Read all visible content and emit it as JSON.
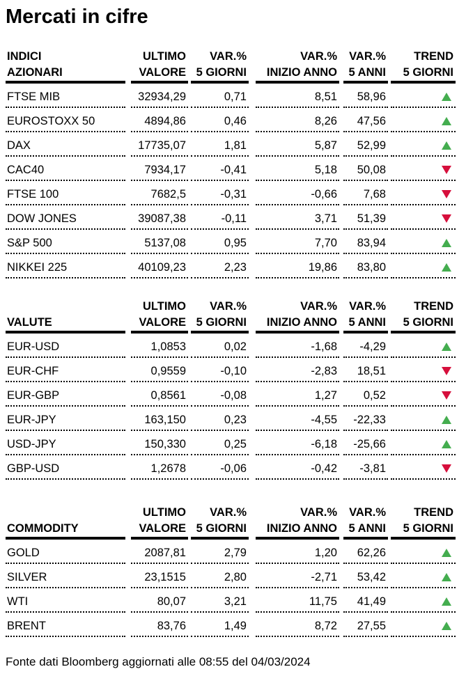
{
  "page_title": "Mercati in cifre",
  "colors": {
    "text": "#000000",
    "background": "#ffffff",
    "trend_up": "#44ad4f",
    "trend_down": "#d60f3c"
  },
  "footer": {
    "text": "Fonte dati Bloomberg aggiornati alle 08:55 del 04/03/2024"
  },
  "tables": [
    {
      "id": "indici-azionari",
      "header": {
        "col_label": [
          "INDICI",
          "AZIONARI"
        ],
        "columns": [
          [
            "ULTIMO",
            "VALORE"
          ],
          [
            "VAR.%",
            "5 GIORNI"
          ],
          [
            "VAR.%",
            "INIZIO ANNO"
          ],
          [
            "VAR.%",
            "5 ANNI"
          ],
          [
            "TREND",
            "5 GIORNI"
          ]
        ]
      },
      "rows": [
        {
          "name": "FTSE MIB",
          "ultimo_valore": "32934,29",
          "var_5_giorni": "0,71",
          "var_inizio_anno": "8,51",
          "var_5_anni": "58,96",
          "trend_5_giorni": "up"
        },
        {
          "name": "EUROSTOXX 50",
          "ultimo_valore": "4894,86",
          "var_5_giorni": "0,46",
          "var_inizio_anno": "8,26",
          "var_5_anni": "47,56",
          "trend_5_giorni": "up"
        },
        {
          "name": "DAX",
          "ultimo_valore": "17735,07",
          "var_5_giorni": "1,81",
          "var_inizio_anno": "5,87",
          "var_5_anni": "52,99",
          "trend_5_giorni": "up"
        },
        {
          "name": "CAC40",
          "ultimo_valore": "7934,17",
          "var_5_giorni": "-0,41",
          "var_inizio_anno": "5,18",
          "var_5_anni": "50,08",
          "trend_5_giorni": "down"
        },
        {
          "name": "FTSE 100",
          "ultimo_valore": "7682,5",
          "var_5_giorni": "-0,31",
          "var_inizio_anno": "-0,66",
          "var_5_anni": "7,68",
          "trend_5_giorni": "down"
        },
        {
          "name": "DOW JONES",
          "ultimo_valore": "39087,38",
          "var_5_giorni": "-0,11",
          "var_inizio_anno": "3,71",
          "var_5_anni": "51,39",
          "trend_5_giorni": "down"
        },
        {
          "name": "S&P 500",
          "ultimo_valore": "5137,08",
          "var_5_giorni": "0,95",
          "var_inizio_anno": "7,70",
          "var_5_anni": "83,94",
          "trend_5_giorni": "up"
        },
        {
          "name": "NIKKEI 225",
          "ultimo_valore": "40109,23",
          "var_5_giorni": "2,23",
          "var_inizio_anno": "19,86",
          "var_5_anni": "83,80",
          "trend_5_giorni": "up"
        }
      ]
    },
    {
      "id": "valute",
      "header": {
        "col_label": [
          "",
          "VALUTE"
        ],
        "columns": [
          [
            "ULTIMO",
            "VALORE"
          ],
          [
            "VAR.%",
            "5 GIORNI"
          ],
          [
            "VAR.%",
            "INIZIO ANNO"
          ],
          [
            "VAR.%",
            "5 ANNI"
          ],
          [
            "TREND",
            "5 GIORNI"
          ]
        ]
      },
      "rows": [
        {
          "name": "EUR-USD",
          "ultimo_valore": "1,0853",
          "var_5_giorni": "0,02",
          "var_inizio_anno": "-1,68",
          "var_5_anni": "-4,29",
          "trend_5_giorni": "up"
        },
        {
          "name": "EUR-CHF",
          "ultimo_valore": "0,9559",
          "var_5_giorni": "-0,10",
          "var_inizio_anno": "-2,83",
          "var_5_anni": "18,51",
          "trend_5_giorni": "down"
        },
        {
          "name": "EUR-GBP",
          "ultimo_valore": "0,8561",
          "var_5_giorni": "-0,08",
          "var_inizio_anno": "1,27",
          "var_5_anni": "0,52",
          "trend_5_giorni": "down"
        },
        {
          "name": "EUR-JPY",
          "ultimo_valore": "163,150",
          "var_5_giorni": "0,23",
          "var_inizio_anno": "-4,55",
          "var_5_anni": "-22,33",
          "trend_5_giorni": "up"
        },
        {
          "name": "USD-JPY",
          "ultimo_valore": "150,330",
          "var_5_giorni": "0,25",
          "var_inizio_anno": "-6,18",
          "var_5_anni": "-25,66",
          "trend_5_giorni": "up"
        },
        {
          "name": "GBP-USD",
          "ultimo_valore": "1,2678",
          "var_5_giorni": "-0,06",
          "var_inizio_anno": "-0,42",
          "var_5_anni": "-3,81",
          "trend_5_giorni": "down"
        }
      ]
    },
    {
      "id": "commodity",
      "header": {
        "col_label": [
          "",
          "COMMODITY"
        ],
        "columns": [
          [
            "ULTIMO",
            "VALORE"
          ],
          [
            "VAR.%",
            "5 GIORNI"
          ],
          [
            "VAR.%",
            "INIZIO ANNO"
          ],
          [
            "VAR.%",
            "5 ANNI"
          ],
          [
            "TREND",
            "5 GIORNI"
          ]
        ]
      },
      "rows": [
        {
          "name": "GOLD",
          "ultimo_valore": "2087,81",
          "var_5_giorni": "2,79",
          "var_inizio_anno": "1,20",
          "var_5_anni": "62,26",
          "trend_5_giorni": "up"
        },
        {
          "name": "SILVER",
          "ultimo_valore": "23,1515",
          "var_5_giorni": "2,80",
          "var_inizio_anno": "-2,71",
          "var_5_anni": "53,42",
          "trend_5_giorni": "up"
        },
        {
          "name": "WTI",
          "ultimo_valore": "80,07",
          "var_5_giorni": "3,21",
          "var_inizio_anno": "11,75",
          "var_5_anni": "41,49",
          "trend_5_giorni": "up"
        },
        {
          "name": "BRENT",
          "ultimo_valore": "83,76",
          "var_5_giorni": "1,49",
          "var_inizio_anno": "8,72",
          "var_5_anni": "27,55",
          "trend_5_giorni": "up"
        }
      ]
    }
  ]
}
